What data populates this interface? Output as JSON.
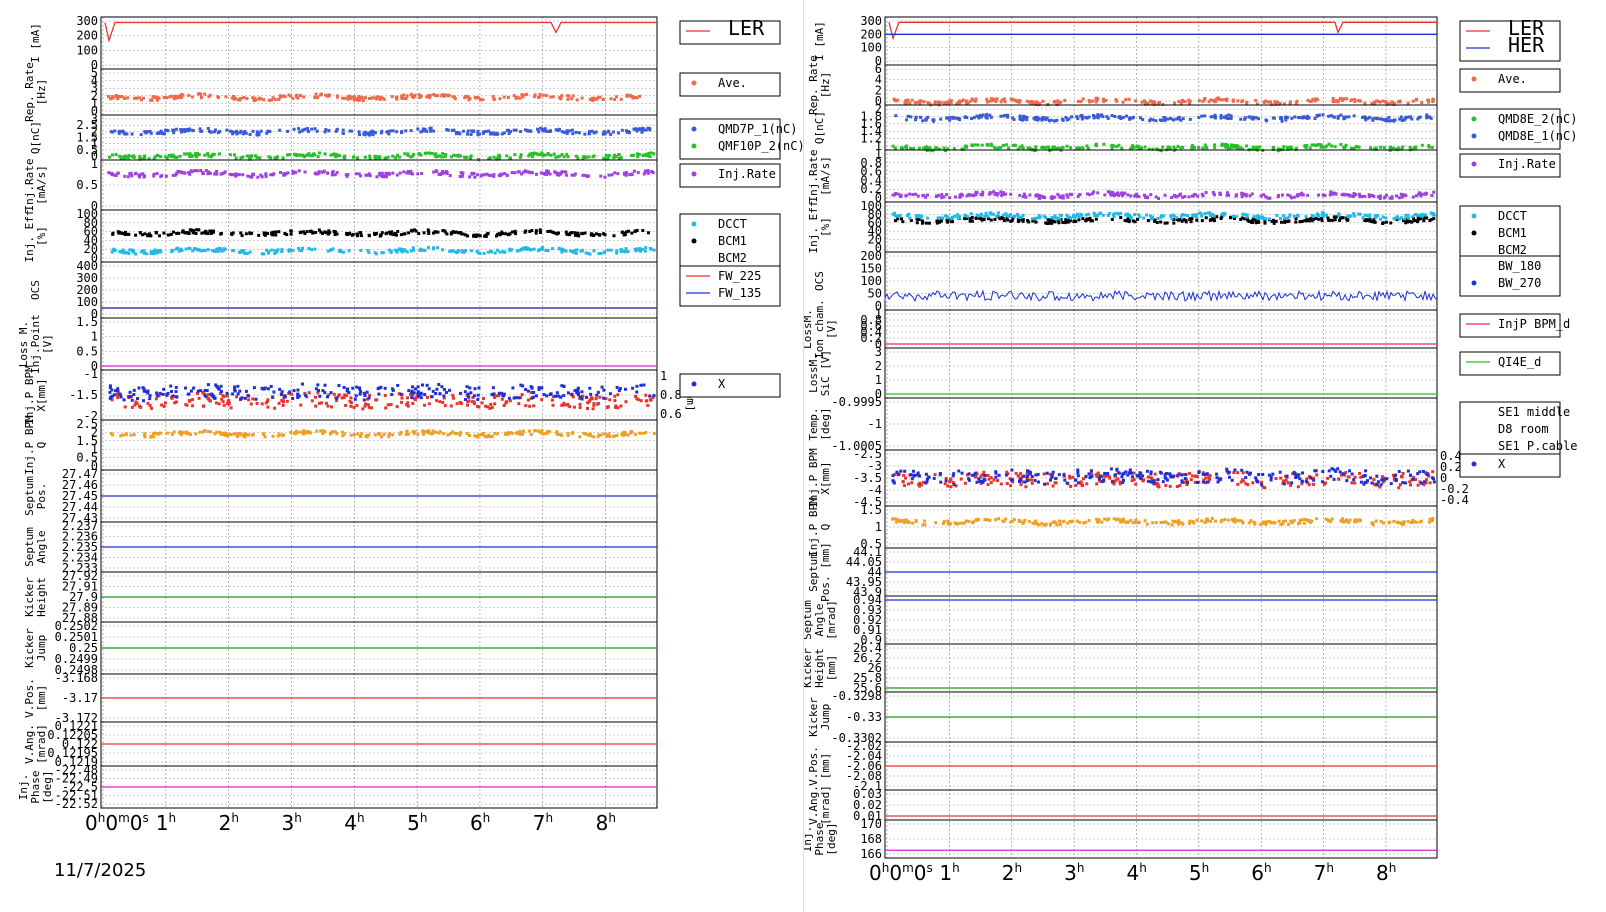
{
  "date_label": "11/7/2025",
  "time_axis_labels": [
    "0h0m0s",
    "1h",
    "2h",
    "3h",
    "4h",
    "5h",
    "6h",
    "7h",
    "8h"
  ],
  "colors": {
    "red": "#e8322b",
    "blue": "#1f2fd6",
    "orange": "#f0a020",
    "purple": "#a040e0",
    "green": "#28c028",
    "cyan": "#22b8e8",
    "black": "#000000",
    "magenta": "#e020c8",
    "pink": "#f0207a",
    "salmon": "#f06a4a",
    "royal": "#3a5ad8",
    "darkgreen": "#1a9a1a"
  },
  "chart_data": [
    {
      "panel_id": "ler",
      "type": "line",
      "title": "",
      "x": {
        "label": "",
        "range_hours": [
          0,
          9
        ],
        "ticks": [
          "0h0m0s",
          "1h",
          "2h",
          "3h",
          "4h",
          "5h",
          "6h",
          "7h",
          "8h"
        ]
      },
      "rows": [
        {
          "ylabel": "I [mA]",
          "yticks": [
            "300",
            "200",
            "100",
            "0"
          ],
          "legend": [
            "LER"
          ],
          "series": [
            {
              "name": "LER",
              "color": "red",
              "kind": "line",
              "level": 290
            }
          ]
        },
        {
          "ylabel": "Rep. Rate [Hz]",
          "yticks": [
            "5",
            "4",
            "3",
            "2",
            "1",
            "0"
          ],
          "legend": [
            "Ave."
          ],
          "series": [
            {
              "name": "Ave.",
              "color": "salmon",
              "kind": "dots",
              "level": 2.0
            }
          ]
        },
        {
          "ylabel": "Q[nC]",
          "yticks": [
            "3",
            "2.5",
            "2",
            "1.5",
            "1",
            "0.5",
            "0"
          ],
          "legend": [
            "QMD7P_1(nC)",
            "QMF10P_2(nC)"
          ],
          "series": [
            {
              "name": "QMD7P_1(nC)",
              "color": "royal",
              "kind": "dots",
              "level": 2.1
            },
            {
              "name": "QMF10P_2(nC)",
              "color": "green",
              "kind": "dots",
              "level": 0.1
            }
          ]
        },
        {
          "ylabel": "Inj.Rate [mA/s]",
          "yticks": [
            "1",
            "0.5",
            "0"
          ],
          "legend": [
            "Inj.Rate"
          ],
          "series": [
            {
              "name": "Inj.Rate",
              "color": "purple",
              "kind": "dots",
              "level": 0.8
            }
          ]
        },
        {
          "ylabel": "Inj. Eff [%]",
          "yticks": [
            "100",
            "80",
            "60",
            "40",
            "20",
            "0"
          ],
          "legend": [
            "DCCT",
            "BCM1",
            "BCM2"
          ],
          "series": [
            {
              "name": "BCM1",
              "color": "black",
              "kind": "dots",
              "level": 60
            },
            {
              "name": "DCCT",
              "color": "cyan",
              "kind": "dots",
              "level": 20
            }
          ]
        },
        {
          "ylabel": "OCS",
          "yticks": [
            "400",
            "300",
            "200",
            "100",
            "0"
          ],
          "legend": [
            "FW_225",
            "FW_135"
          ],
          "series": [
            {
              "name": "FW_225",
              "color": "red",
              "kind": "line",
              "level": 50
            },
            {
              "name": "FW_135",
              "color": "blue",
              "kind": "line",
              "level": 50
            }
          ]
        },
        {
          "ylabel": "Loss M. Inj.Point [V]",
          "yticks": [
            "1.5",
            "1",
            "0.5",
            "0"
          ],
          "legend": [],
          "series": [
            {
              "name": "",
              "color": "magenta",
              "kind": "line",
              "level": 0
            }
          ]
        },
        {
          "ylabel": "Inj.P BPM X[mm]",
          "yticks": [
            "-1",
            "-1.5",
            "-2"
          ],
          "yticks_right": [
            "1",
            "0.8",
            "0.6"
          ],
          "ylabel_right": "Y[mm]",
          "legend": [
            "X"
          ],
          "series": [
            {
              "name": "",
              "color": "red",
              "kind": "dots",
              "level": -1.6
            },
            {
              "name": "X",
              "color": "blue",
              "kind": "dots",
              "level": -1.4
            }
          ]
        },
        {
          "ylabel": "Inj.P BPM Q",
          "yticks": [
            "2.5",
            "2",
            "1.5",
            "1",
            "0.5",
            "0"
          ],
          "legend": [],
          "series": [
            {
              "name": "",
              "color": "orange",
              "kind": "dots",
              "level": 2.0
            }
          ]
        },
        {
          "ylabel": "Septum Pos.",
          "yticks": [
            "27.47",
            "27.46",
            "27.45",
            "27.44",
            "27.43"
          ],
          "legend": [],
          "series": [
            {
              "name": "",
              "color": "blue",
              "kind": "line",
              "level": 27.45
            }
          ]
        },
        {
          "ylabel": "Septum Angle",
          "yticks": [
            "2.237",
            "2.236",
            "2.235",
            "2.234",
            "2.233"
          ],
          "legend": [],
          "series": [
            {
              "name": "",
              "color": "blue",
              "kind": "line",
              "level": 2.235
            }
          ]
        },
        {
          "ylabel": "Kicker Height",
          "yticks": [
            "27.92",
            "27.91",
            "27.9",
            "27.89",
            "27.88"
          ],
          "legend": [],
          "series": [
            {
              "name": "",
              "color": "darkgreen",
              "kind": "line",
              "level": 27.9
            }
          ]
        },
        {
          "ylabel": "Kicker Jump",
          "yticks": [
            "0.2502",
            "0.2501",
            "0.25",
            "0.2499",
            "0.2498"
          ],
          "legend": [],
          "series": [
            {
              "name": "",
              "color": "darkgreen",
              "kind": "line",
              "level": 0.25
            }
          ]
        },
        {
          "ylabel": "V.Pos. [mm]",
          "yticks": [
            "-3.168",
            "-3.17",
            "-3.172"
          ],
          "legend": [],
          "series": [
            {
              "name": "",
              "color": "red",
              "kind": "line",
              "level": -3.17
            }
          ]
        },
        {
          "ylabel": "V.Ang. [mrad]",
          "yticks": [
            "0.1221",
            "0.12205",
            "0.122",
            "0.12195",
            "0.1219"
          ],
          "legend": [],
          "series": [
            {
              "name": "",
              "color": "red",
              "kind": "line",
              "level": 0.122
            }
          ]
        },
        {
          "ylabel": "Inj. Phase [deg]",
          "yticks": [
            "-22.48",
            "-22.49",
            "-22.5",
            "-22.51",
            "-22.52"
          ],
          "legend": [],
          "series": [
            {
              "name": "",
              "color": "magenta",
              "kind": "line",
              "level": -22.5
            }
          ]
        }
      ]
    },
    {
      "panel_id": "her",
      "type": "line",
      "title": "",
      "x": {
        "label": "",
        "range_hours": [
          0,
          9
        ],
        "ticks": [
          "0h0m0s",
          "1h",
          "2h",
          "3h",
          "4h",
          "5h",
          "6h",
          "7h",
          "8h"
        ]
      },
      "rows": [
        {
          "ylabel": "I [mA]",
          "yticks": [
            "300",
            "200",
            "100",
            "0"
          ],
          "legend": [
            "LER",
            "HER"
          ],
          "series": [
            {
              "name": "LER",
              "color": "red",
              "kind": "line",
              "level": 290
            },
            {
              "name": "HER",
              "color": "blue",
              "kind": "line",
              "level": 200
            }
          ]
        },
        {
          "ylabel": "Rep. Rate [Hz]",
          "yticks": [
            "6",
            "4",
            "2",
            "0"
          ],
          "legend": [
            "Ave."
          ],
          "series": [
            {
              "name": "Ave.",
              "color": "salmon",
              "kind": "dots",
              "level": 0.2
            }
          ]
        },
        {
          "ylabel": "Q[nC]",
          "yticks": [
            "2",
            "1.8",
            "1.6",
            "1.4",
            "1.2",
            "1"
          ],
          "legend": [
            "QMD8E_2(nC)",
            "QMD8E_1(nC)"
          ],
          "series": [
            {
              "name": "QMD8E_1(nC)",
              "color": "royal",
              "kind": "dots",
              "level": 1.8
            },
            {
              "name": "QMD8E_2(nC)",
              "color": "green",
              "kind": "dots",
              "level": 1.0
            }
          ]
        },
        {
          "ylabel": "Inj.Rate [mA/s]",
          "yticks": [
            "1",
            "0.8",
            "0.6",
            "0.4",
            "0.2",
            "0"
          ],
          "legend": [
            "Inj.Rate"
          ],
          "series": [
            {
              "name": "Inj.Rate",
              "color": "purple",
              "kind": "dots",
              "level": 0.1
            }
          ]
        },
        {
          "ylabel": "Inj. Eff [%]",
          "yticks": [
            "100",
            "80",
            "60",
            "40",
            "20",
            "0"
          ],
          "legend": [
            "DCCT",
            "BCM1",
            "BCM2"
          ],
          "series": [
            {
              "name": "BCM1",
              "color": "black",
              "kind": "dots",
              "level": 70
            },
            {
              "name": "DCCT",
              "color": "cyan",
              "kind": "dots",
              "level": 80
            }
          ]
        },
        {
          "ylabel": "OCS",
          "yticks": [
            "200",
            "150",
            "100",
            "50",
            "0"
          ],
          "legend": [
            "BW_180",
            "BW_270"
          ],
          "series": [
            {
              "name": "BW_270",
              "color": "blue",
              "kind": "noise",
              "level": 20
            }
          ]
        },
        {
          "ylabel": "LossM. Ion cham. [V]",
          "yticks": [
            "1",
            "0.8",
            "0.6",
            "0.4",
            "0.2",
            "0"
          ],
          "legend": [
            "InjP BPM_d"
          ],
          "series": [
            {
              "name": "InjP BPM_d",
              "color": "pink",
              "kind": "line",
              "level": 0
            }
          ]
        },
        {
          "ylabel": "LossM. SiC [V]",
          "yticks": [
            "3",
            "2",
            "1",
            "0"
          ],
          "legend": [
            "QI4E_d"
          ],
          "series": [
            {
              "name": "QI4E_d",
              "color": "green",
              "kind": "line",
              "level": 0
            }
          ]
        },
        {
          "ylabel": "Temp. [deg]",
          "yticks": [
            "-0.9995",
            "-1",
            "-1.0005"
          ],
          "legend": [
            "SE1 middle",
            "D8 room",
            "SE1 P.cable"
          ],
          "series": []
        },
        {
          "ylabel": "Inj.P BPM X[mm]",
          "yticks": [
            "-2.5",
            "-3",
            "-3.5",
            "-4",
            "-4.5"
          ],
          "yticks_right": [
            "0.4",
            "0.2",
            "0",
            "-0.2",
            "-0.4"
          ],
          "legend": [
            "X"
          ],
          "series": [
            {
              "name": "",
              "color": "red",
              "kind": "dots",
              "level": -3.5
            },
            {
              "name": "X",
              "color": "blue",
              "kind": "dots",
              "level": -3.4
            }
          ]
        },
        {
          "ylabel": "Inj.P BPM Q",
          "yticks": [
            "1.5",
            "1",
            "0.5"
          ],
          "legend": [],
          "series": [
            {
              "name": "",
              "color": "orange",
              "kind": "dots",
              "level": 1.2
            }
          ]
        },
        {
          "ylabel": "Septum Pos. [mm]",
          "yticks": [
            "44.1",
            "44.05",
            "44",
            "43.95",
            "43.9"
          ],
          "legend": [],
          "series": [
            {
              "name": "",
              "color": "blue",
              "kind": "line",
              "level": 44.0
            }
          ]
        },
        {
          "ylabel": "Septum Angle [mrad]",
          "yticks": [
            "0.94",
            "0.93",
            "0.92",
            "0.91",
            "0.9"
          ],
          "legend": [],
          "series": [
            {
              "name": "",
              "color": "blue",
              "kind": "line",
              "level": 0.94
            }
          ]
        },
        {
          "ylabel": "Kicker Height [mm]",
          "yticks": [
            "26.4",
            "26.2",
            "26",
            "25.8",
            "25.6"
          ],
          "legend": [],
          "series": [
            {
              "name": "",
              "color": "darkgreen",
              "kind": "line",
              "level": 25.6
            }
          ]
        },
        {
          "ylabel": "Kicker Jump",
          "yticks": [
            "-0.3298",
            "-0.33",
            "-0.3302"
          ],
          "legend": [],
          "series": [
            {
              "name": "",
              "color": "darkgreen",
              "kind": "line",
              "level": -0.33
            }
          ]
        },
        {
          "ylabel": "V.Pos. [mm]",
          "yticks": [
            "-2.02",
            "-2.04",
            "-2.06",
            "-2.08",
            "-2.1"
          ],
          "legend": [],
          "series": [
            {
              "name": "",
              "color": "red",
              "kind": "line",
              "level": -2.06
            }
          ]
        },
        {
          "ylabel": "V.Ang. [mrad]",
          "yticks": [
            "0.03",
            "0.02",
            "0.01"
          ],
          "legend": [],
          "series": [
            {
              "name": "",
              "color": "red",
              "kind": "line",
              "level": 0.01
            }
          ]
        },
        {
          "ylabel": "Inj. Phase [deg]",
          "yticks": [
            "170",
            "168",
            "166"
          ],
          "legend": [],
          "series": [
            {
              "name": "",
              "color": "magenta",
              "kind": "line",
              "level": 166.5
            }
          ]
        }
      ]
    }
  ]
}
